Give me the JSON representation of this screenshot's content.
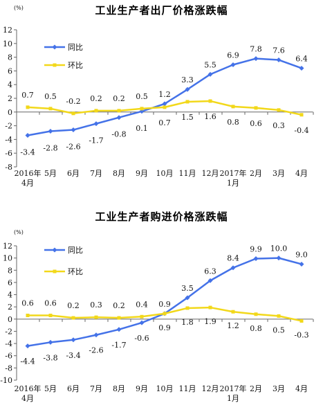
{
  "chart_data": [
    {
      "type": "line",
      "title": "工业生产者出厂价格涨跌幅",
      "unit_label": "(%)",
      "categories": [
        "2016年\n4月",
        "5月",
        "6月",
        "7月",
        "8月",
        "9月",
        "10月",
        "11月",
        "12月",
        "2017年\n1月",
        "2月",
        "3月",
        "4月"
      ],
      "ylim": [
        -8,
        12
      ],
      "yticks": [
        12,
        10,
        8,
        6,
        4,
        2,
        0,
        -2,
        -4,
        -6,
        -8
      ],
      "grid": false,
      "legend_position": "top-left",
      "series": [
        {
          "name": "同比",
          "color": "#4472E8",
          "values": [
            -3.4,
            -2.8,
            -2.6,
            -1.7,
            -0.8,
            0.1,
            1.2,
            3.3,
            5.5,
            6.9,
            7.8,
            7.6,
            6.4
          ],
          "labels": [
            "-3.4",
            "-2.8",
            "-2.6",
            "-1.7",
            "-0.8",
            "0.1",
            "1.2",
            "3.3",
            "5.5",
            "6.9",
            "7.8",
            "7.6",
            "6.4"
          ]
        },
        {
          "name": "环比",
          "color": "#F2D81A",
          "values": [
            0.7,
            0.5,
            -0.2,
            0.2,
            0.2,
            0.5,
            0.7,
            1.5,
            1.6,
            0.8,
            0.6,
            0.3,
            -0.4
          ],
          "labels": [
            "0.7",
            "0.5",
            "-0.2",
            "0.2",
            "0.2",
            "0.5",
            "0.7",
            "1.5",
            "1.6",
            "0.8",
            "0.6",
            "0.3",
            "-0.4"
          ]
        }
      ]
    },
    {
      "type": "line",
      "title": "工业生产者购进价格涨跌幅",
      "unit_label": "(%)",
      "categories": [
        "2016年\n4月",
        "5月",
        "6月",
        "7月",
        "8月",
        "9月",
        "10月",
        "11月",
        "12月",
        "2017年\n1月",
        "2月",
        "3月",
        "4月"
      ],
      "ylim": [
        -10,
        12
      ],
      "yticks": [
        12,
        10,
        8,
        6,
        4,
        2,
        0,
        -2,
        -4,
        -6,
        -8,
        -10
      ],
      "grid": false,
      "legend_position": "top-left",
      "series": [
        {
          "name": "同比",
          "color": "#4472E8",
          "values": [
            -4.4,
            -3.8,
            -3.4,
            -2.6,
            -1.7,
            -0.6,
            0.9,
            3.5,
            6.3,
            8.4,
            9.9,
            10.0,
            9.0
          ],
          "labels": [
            "-4.4",
            "-3.8",
            "-3.4",
            "-2.6",
            "-1.7",
            "-0.6",
            "0.9",
            "3.5",
            "6.3",
            "8.4",
            "9.9",
            "10.0",
            "9.0"
          ]
        },
        {
          "name": "环比",
          "color": "#F2D81A",
          "values": [
            0.6,
            0.6,
            0.2,
            0.3,
            0.2,
            0.4,
            0.9,
            1.8,
            1.9,
            1.2,
            0.8,
            0.5,
            -0.3
          ],
          "labels": [
            "0.6",
            "0.6",
            "0.2",
            "0.3",
            "0.2",
            "0.4",
            "0.9",
            "1.8",
            "1.9",
            "1.2",
            "0.8",
            "0.5",
            "-0.3"
          ]
        }
      ]
    }
  ]
}
